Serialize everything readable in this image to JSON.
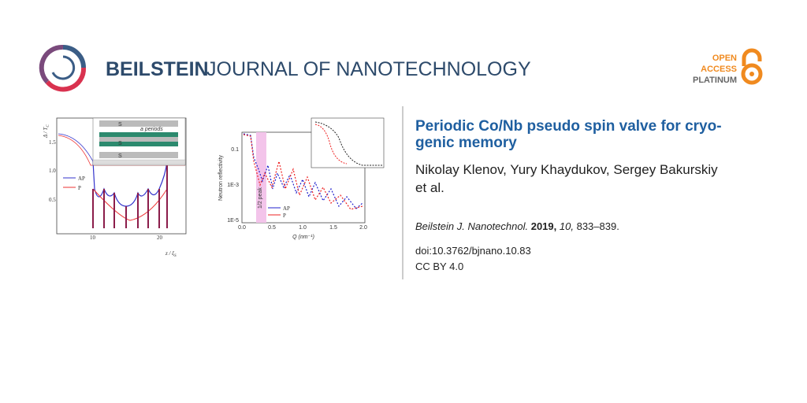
{
  "header": {
    "journal_bold": "BEILSTEIN",
    "journal_rest": "JOURNAL OF NANOTECHNOLOGY",
    "badge": [
      "OPEN",
      "ACCESS",
      "PLATINUM"
    ]
  },
  "figure": {
    "left": {
      "y_label": "Δ / T",
      "y_label_sub": "C",
      "yticks": [
        "1.5",
        "1.0",
        "0.5"
      ],
      "xticks": [
        "10",
        "20"
      ],
      "x_label": "z / ξ",
      "x_label_sub": "S",
      "legend": [
        "AP",
        "P"
      ],
      "inset": [
        "S",
        "S",
        "S",
        "a periods"
      ]
    },
    "right": {
      "y_label": "Neutron reflectivity",
      "yticks": [
        "0.1",
        "1E-3",
        "1E-5"
      ],
      "xticks": [
        "0.0",
        "0.5",
        "1.0",
        "1.5",
        "2.0"
      ],
      "x_label": "Q (nm⁻¹)",
      "legend": [
        "AP",
        "P"
      ],
      "band_label": "1/2 peak"
    }
  },
  "article": {
    "title_lines": [
      "Periodic Co/Nb pseudo spin valve for cryo-",
      "genic memory"
    ],
    "author_lines": [
      "Nikolay Klenov, Yury Khaydukov, Sergey Bakurskiy",
      "et al."
    ],
    "citation": {
      "journal": "Beilstein J. Nanotechnol.",
      "year": "2019,",
      "volume": "10,",
      "pages": "833–839."
    },
    "doi": "doi:10.3762/bjnano.10.83",
    "license": "CC BY 4.0"
  }
}
